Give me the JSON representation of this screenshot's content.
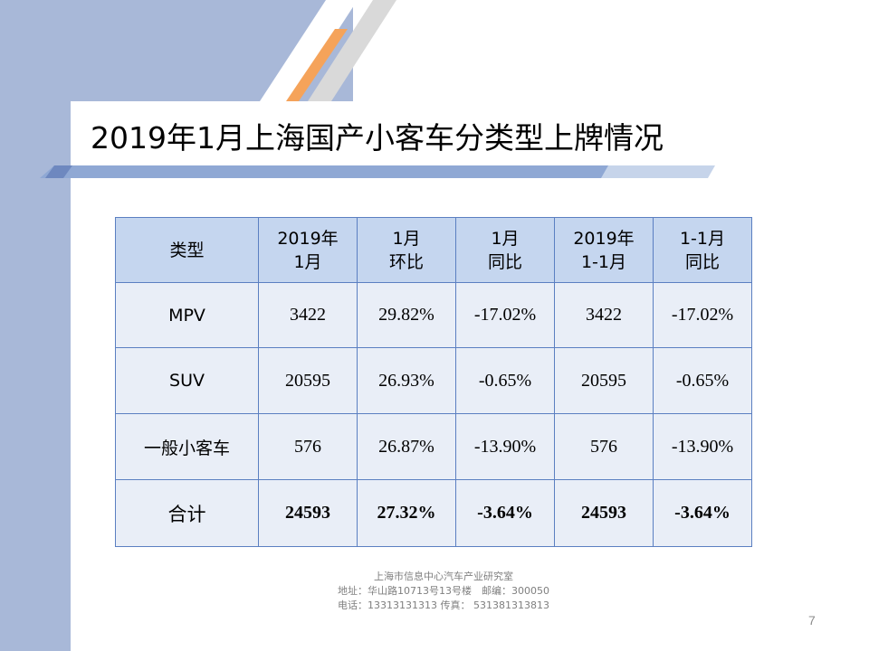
{
  "slide": {
    "title": "2019年1月上海国产小客车分类型上牌情况",
    "page_number": "7"
  },
  "table": {
    "header": [
      [
        "类型"
      ],
      [
        "2019年",
        "1月"
      ],
      [
        "1月",
        "环比"
      ],
      [
        "1月",
        "同比"
      ],
      [
        "2019年",
        "1-1月"
      ],
      [
        "1-1月",
        "同比"
      ]
    ],
    "rows": [
      [
        "MPV",
        "3422",
        "29.82%",
        "-17.02%",
        "3422",
        "-17.02%"
      ],
      [
        "SUV",
        "20595",
        "26.93%",
        "-0.65%",
        "20595",
        "-0.65%"
      ],
      [
        "一般小客车",
        "576",
        "26.87%",
        "-13.90%",
        "576",
        "-13.90%"
      ],
      [
        "合计",
        "24593",
        "27.32%",
        "-3.64%",
        "24593",
        "-3.64%"
      ]
    ]
  },
  "footer": {
    "org": "上海市信息中心汽车产业研究室",
    "address": "地址：华山路10713号13号楼　邮编：300050",
    "contact": "电话：13313131313  传真： 531381313813"
  },
  "colors": {
    "header_fill": "#c5d6ef",
    "cell_fill": "#e9eef7",
    "border": "#5b7fc1",
    "accent_blue": "#a8b8d8",
    "accent_orange": "#f5a35a"
  }
}
